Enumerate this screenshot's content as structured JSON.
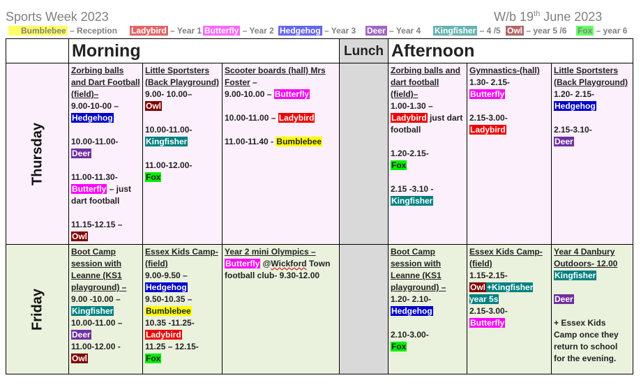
{
  "header": {
    "title": "Sports Week 2023",
    "week_prefix": "W/b 19",
    "week_sup": "th",
    "week_suffix": " June 2023"
  },
  "key": [
    {
      "house": "Bumblebee",
      "desc": " – Reception",
      "color": "#ffff66"
    },
    {
      "house": "Ladybird",
      "desc": " – Year 1",
      "color": "#e06666"
    },
    {
      "house": "Butterfly",
      "desc": " – Year 2",
      "color": "#ff66ff"
    },
    {
      "house": "Hedgehog",
      "desc": " – Year 3",
      "color": "#6666ee"
    },
    {
      "house": "Deer",
      "desc": " – Year 4",
      "color": "#a066c0"
    },
    {
      "house": "Kingfisher",
      "desc": " – 4 /5",
      "color": "#66b2b2"
    },
    {
      "house": "Owl",
      "desc": " – year 5 /6",
      "color": "#b06666"
    },
    {
      "house": "Fox",
      "desc": " – year 6",
      "color": "#66ff66"
    }
  ],
  "table": {
    "morning": "Morning",
    "lunch": "Lunch",
    "afternoon": "Afternoon",
    "days": [
      "Thursday",
      "Friday"
    ]
  },
  "thursday": {
    "zorbing": {
      "title": "Zorbing balls and Dart Football (field)–",
      "t1": "9.00-10-00 –",
      "h1": "Hedgehog",
      "t2": "10.00-11.00-",
      "h2": "Deer",
      "t3": "11.00-11.30-",
      "h3": "Butterfly",
      "n3": " – just dart football",
      "t4": "11.15-12.15 –",
      "h4": "Owl"
    },
    "little": {
      "title": "Little Sportsters (Back Playground)",
      "t1": "9.00- 10.00–",
      "h1": "Owl",
      "t2": "10.00-11.00-",
      "h2": "Kingfisher",
      "t3": "11.00-12.00-",
      "h3": "Fox"
    },
    "scooter": {
      "title": "Scooter boards (hall) Mrs Foster",
      "dash": " –",
      "t1": "9.00-10.00 – ",
      "h1": "Butterfly",
      "t2": "10.00-11.00 – ",
      "h2": "Ladybird",
      "t3": "11.00-11.40 - ",
      "h3": "Bumblebee"
    },
    "zorbing_pm": {
      "title": "Zorbing balls and dart football (field)–",
      "t1": "1.00-1.30 –",
      "h1": "Ladybird",
      "n1": " just dart football",
      "t2": "1.20-2.15-",
      "h2": "Fox",
      "t3": "2.15 -3.10 -",
      "h3": "Kingfisher"
    },
    "gym": {
      "title": "Gymnastics-(hall)",
      "t1": "1.30- 2.15-",
      "h1": "Butterfly",
      "t2": "2.15-3.00-",
      "h2": "Ladybird"
    },
    "little_pm": {
      "title": "Little Sportsters (Back Playground)",
      "t1": "1.20- 2.15-",
      "h1": "Hedgehog",
      "t2": "2.15-3.10-",
      "h2": "Deer"
    }
  },
  "friday": {
    "boot": {
      "title": "Boot Camp session with Leanne (KS1 playground) –",
      "t1": "9.00 -10.00 –",
      "h1": "Kingfisher",
      "t2": "10.00-11.00 –",
      "h2": "Deer",
      "t3": "11.00-12.00 -",
      "h3": "Owl"
    },
    "essex": {
      "title": "Essex Kids Camp- (field)",
      "t1": "9.00-9.50 –",
      "h1": "Hedgehog",
      "t2": "9.50-10.35 –",
      "h2": "Bumblebee",
      "t3": "10.35 -11.25-",
      "h3": "Ladybird",
      "t4": "11.25 – 12.15-",
      "h4": "Fox"
    },
    "olympics": {
      "title": "Year 2 mini Olympics –",
      "h1": "Butterfly",
      "at": " @",
      "wick": "Wickford",
      "rest": " Town football club- 9.30-12.00"
    },
    "boot_pm": {
      "title": "Boot Camp session with Leanne (KS1 playground) –",
      "t1": "1.20- 2.10-",
      "h1": "Hedgehog",
      "t2": "2.10-3.00-",
      "h2": "Fox"
    },
    "essex_pm": {
      "title": "Essex Kids Camp- (field)",
      "t1": "1.15-2.15-",
      "h1": "Owl",
      "h1b": "+Kingfisher year 5s",
      "t2": "2.15-3.00-",
      "h2": "Butterfly"
    },
    "danbury": {
      "title": "Year 4 Danbury Outdoors- 12.00",
      "h1": "Kingfisher",
      "h2": "Deer",
      "note": "+ Essex Kids Camp once they return to school for the evening."
    }
  }
}
